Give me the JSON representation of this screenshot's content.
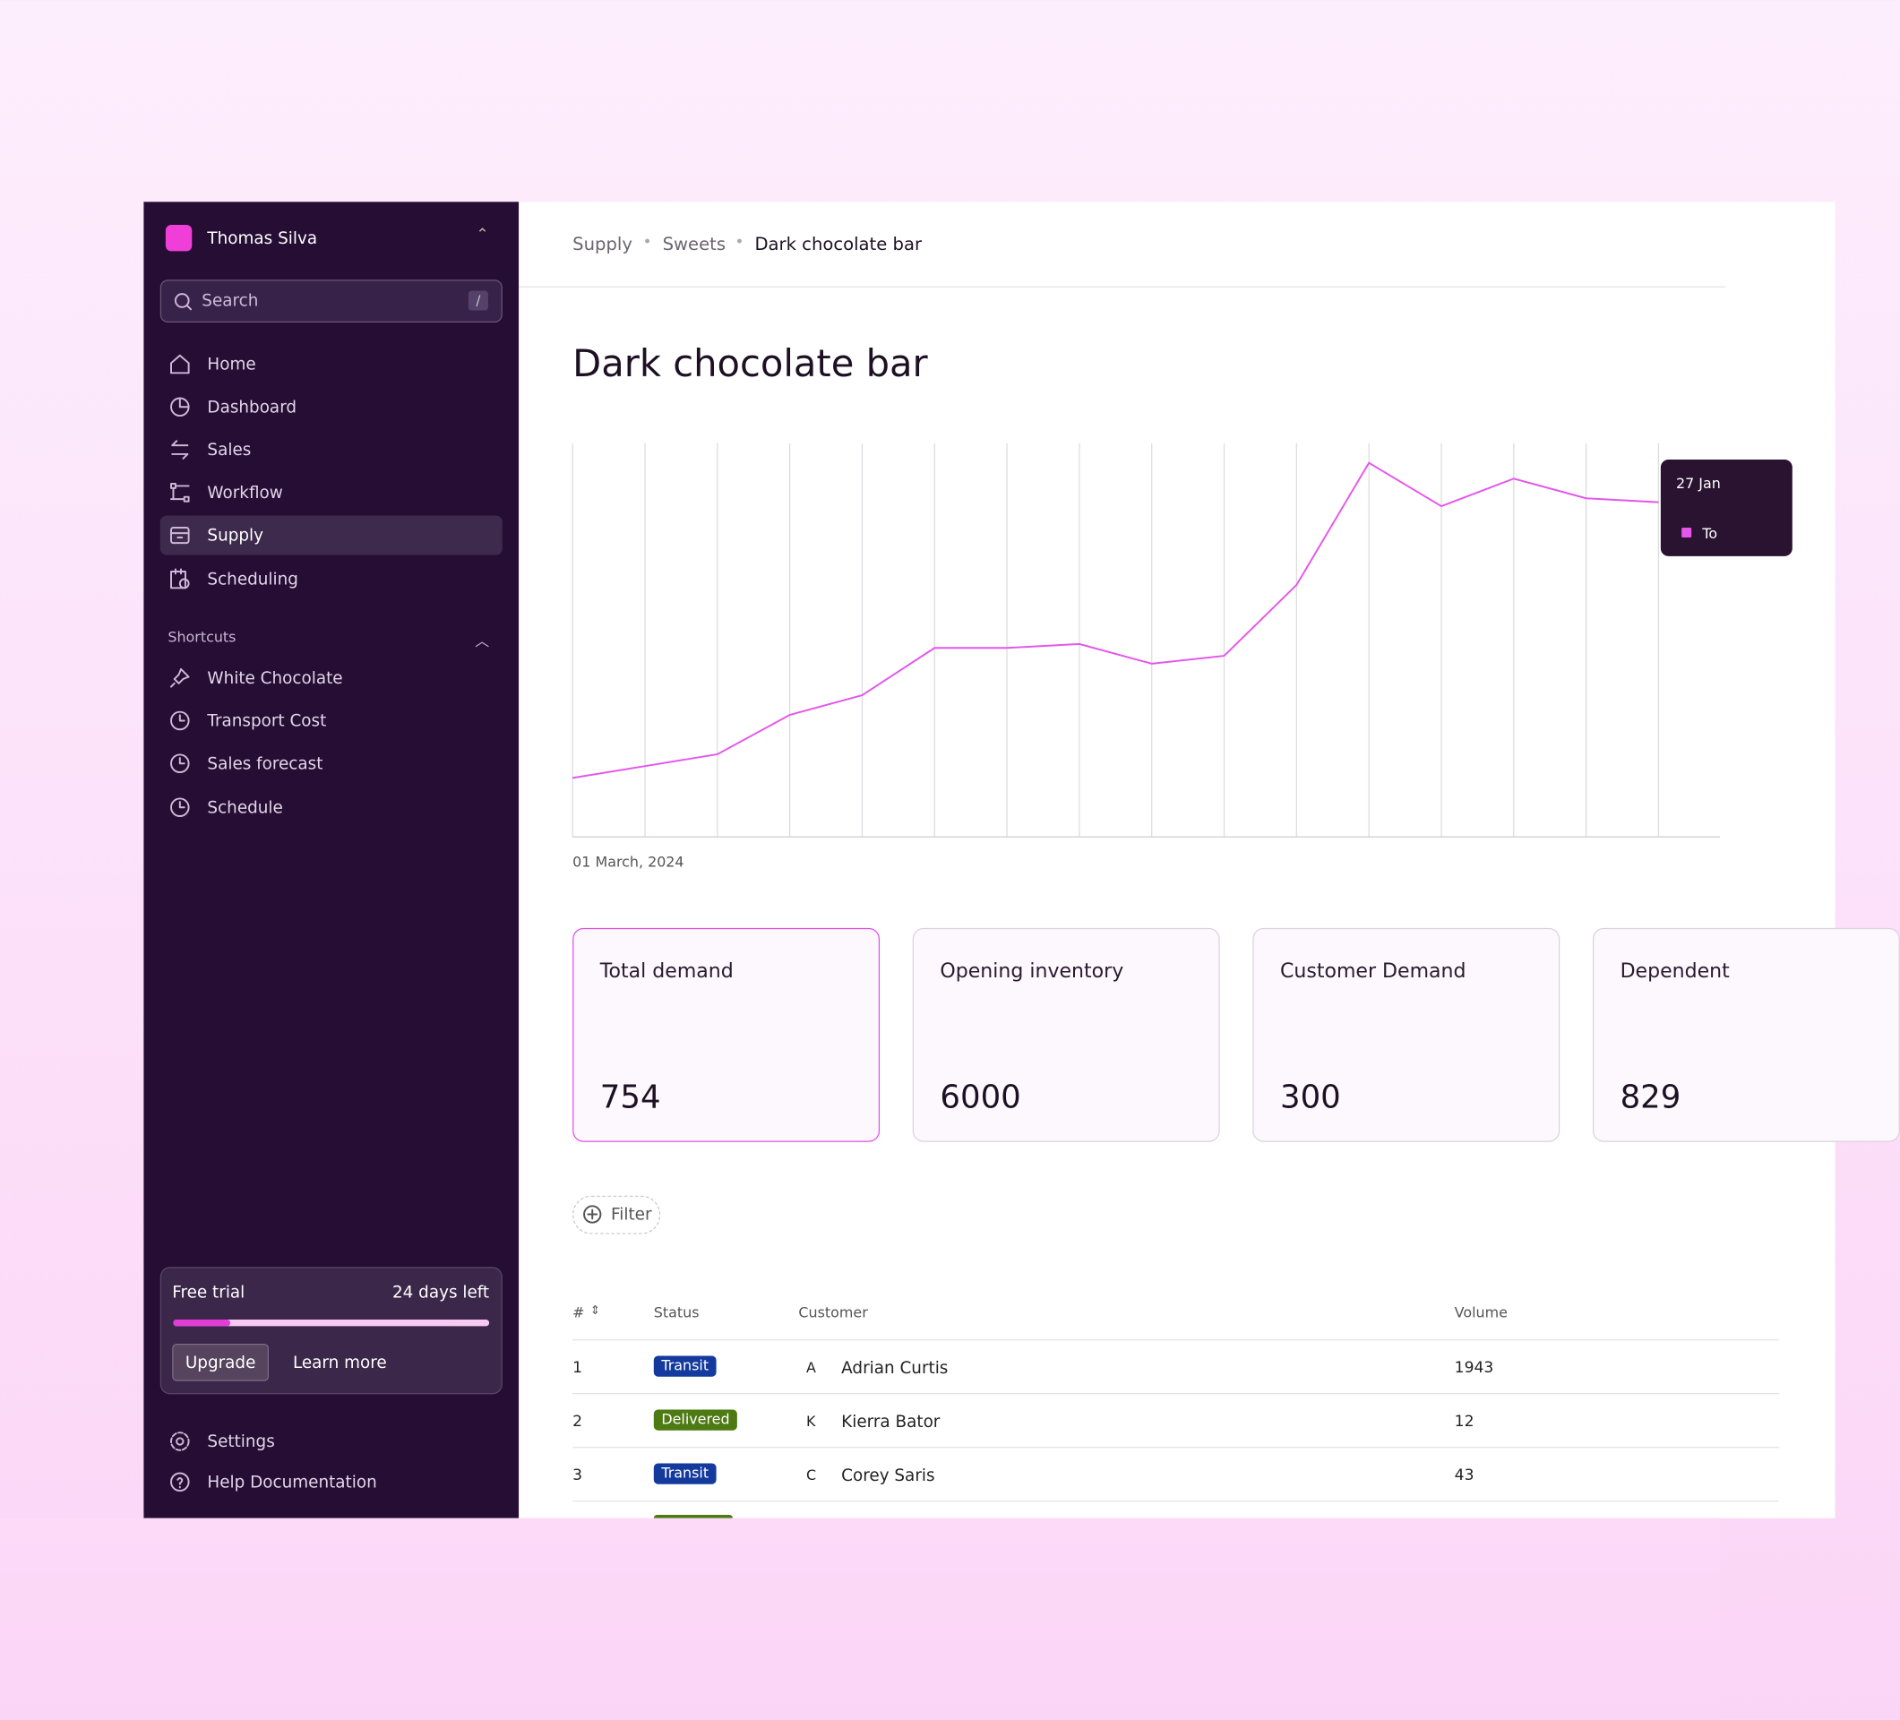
{
  "sidebar": {
    "user": "Thomas Silva",
    "search": {
      "placeholder": "Search",
      "shortcut": "/"
    },
    "nav": [
      "Home",
      "Dashboard",
      "Sales",
      "Workflow",
      "Supply",
      "Scheduling"
    ],
    "shortcuts": {
      "title": "Shortcuts",
      "items": [
        "White Chocolate",
        "Transport Cost",
        "Sales forecast",
        "Schedule"
      ]
    },
    "trial": {
      "title": "Free trial",
      "remaining": "24 days left",
      "progress": 18,
      "upgrade": "Upgrade",
      "learn_more": "Learn more"
    },
    "footer": [
      "Settings",
      "Help Documentation"
    ]
  },
  "breadcrumb": [
    "Supply",
    "Sweets",
    "Dark chocolate bar"
  ],
  "page_title": "Dark chocolate bar",
  "chart_data": {
    "type": "line",
    "categories": [
      "01 March, 2024",
      null,
      null,
      null,
      null,
      null,
      null,
      null,
      null,
      null,
      null,
      null,
      null,
      null,
      null,
      null
    ],
    "values": [
      15,
      18,
      21,
      31,
      36,
      48,
      48,
      49,
      44,
      46,
      64,
      95,
      84,
      91,
      86,
      85
    ],
    "color": "#e456ec",
    "ylim": [
      0,
      100
    ],
    "grid": true,
    "tooltip": {
      "title": "27 Jan",
      "text": "To"
    }
  },
  "cards": [
    {
      "label": "Total demand",
      "value": 754
    },
    {
      "label": "Opening inventory",
      "value": 6000
    },
    {
      "label": "Customer Demand",
      "value": 300
    },
    {
      "label": "Dependent",
      "value": 829
    }
  ],
  "filter": "Filter",
  "table": {
    "columns": [
      "#",
      "Status",
      "Customer",
      "Volume"
    ],
    "rows": [
      [
        1,
        "Transit",
        "A",
        "Adrian Curtis",
        1943
      ],
      [
        2,
        "Delivered",
        "K",
        "Kierra Bator",
        12
      ],
      [
        3,
        "Transit",
        "C",
        "Corey Saris",
        43
      ]
    ]
  }
}
